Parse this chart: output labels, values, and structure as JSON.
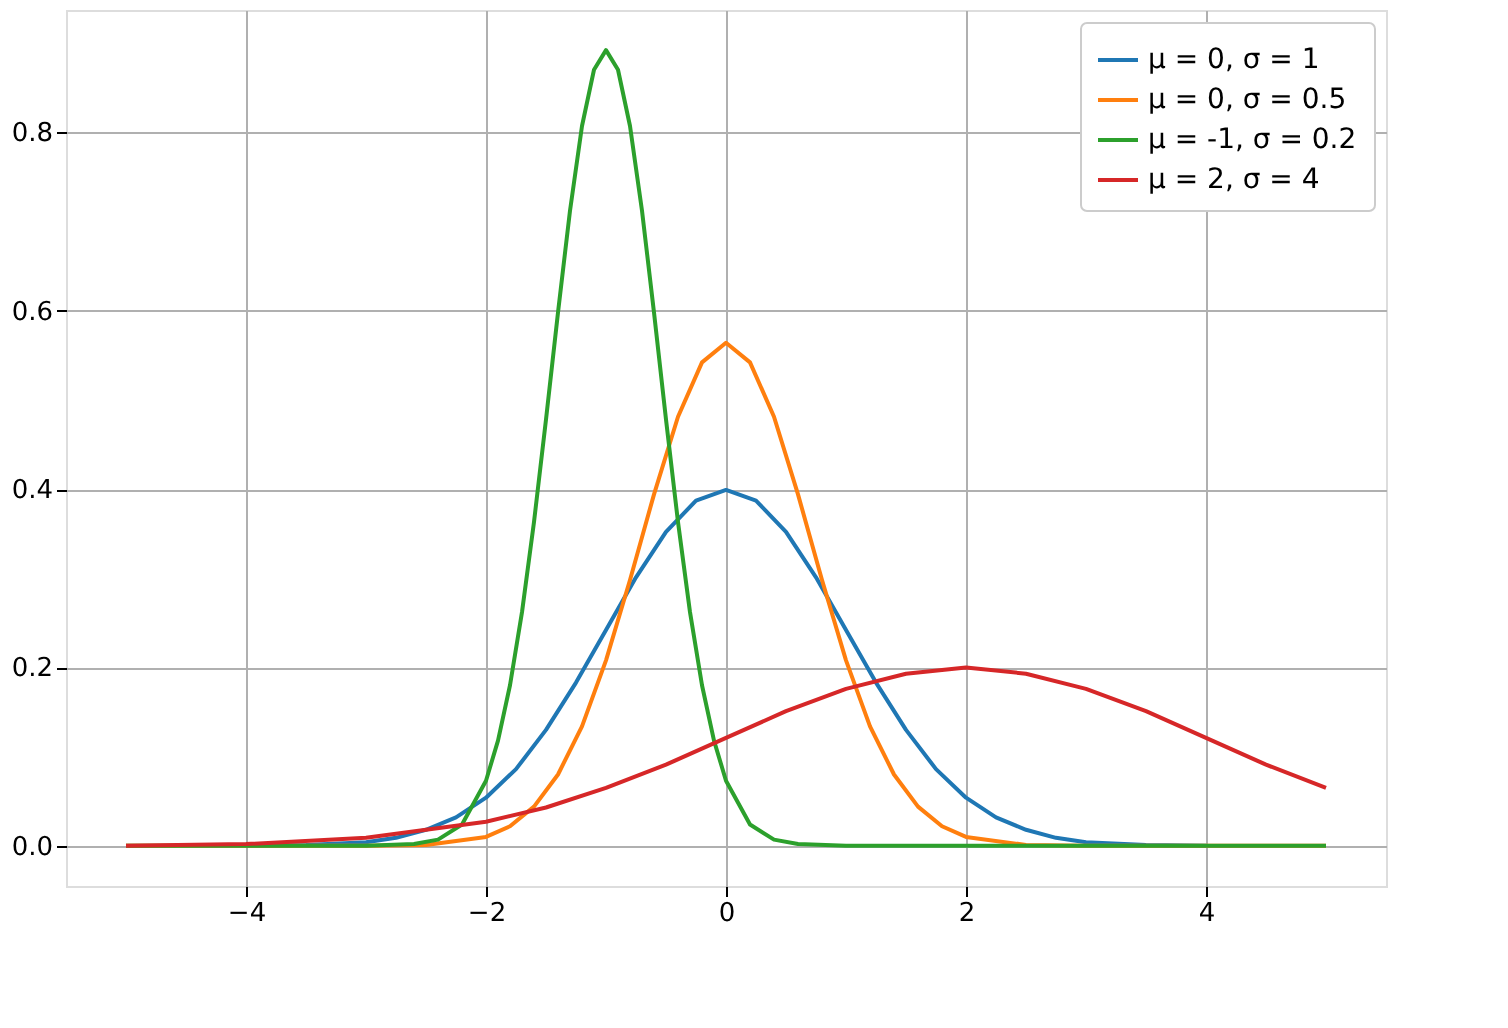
{
  "chart_data": {
    "type": "line",
    "xlim": [
      -5.5,
      5.5
    ],
    "ylim": [
      -0.045,
      0.937
    ],
    "xticks": [
      {
        "value": -4,
        "label": "−4"
      },
      {
        "value": -2,
        "label": "−2"
      },
      0,
      2,
      4
    ],
    "yticks": [
      {
        "value": 0,
        "label": "0.0"
      },
      {
        "value": 0.2,
        "label": "0.2"
      },
      {
        "value": 0.4,
        "label": "0.4"
      },
      {
        "value": 0.6,
        "label": "0.6"
      },
      {
        "value": 0.8,
        "label": "0.8"
      }
    ],
    "grid": true,
    "legend": "top right",
    "line_style": "solid",
    "marker": "none",
    "series": [
      {
        "name": "μ = 0, σ = 1",
        "color": "#1f77b4",
        "x": [
          -4,
          -3.5,
          -3,
          -2.75,
          -2.5,
          -2.25,
          -2,
          -1.75,
          -1.5,
          -1.25,
          -1,
          -0.75,
          -0.5,
          -0.25,
          0,
          0.25,
          0.5,
          0.75,
          1,
          1.25,
          1.5,
          1.75,
          2,
          2.25,
          2.5,
          2.75,
          3,
          3.5,
          4
        ],
        "values": [
          0.0,
          0.001,
          0.004,
          0.009,
          0.018,
          0.032,
          0.054,
          0.086,
          0.13,
          0.183,
          0.242,
          0.301,
          0.352,
          0.387,
          0.399,
          0.387,
          0.352,
          0.301,
          0.242,
          0.183,
          0.13,
          0.086,
          0.054,
          0.032,
          0.018,
          0.009,
          0.004,
          0.001,
          0.0
        ]
      },
      {
        "name": "μ = 0, σ = 0.5",
        "color": "#ff7f0e",
        "x": [
          -5,
          -3,
          -2.5,
          -2,
          -1.8,
          -1.6,
          -1.4,
          -1.2,
          -1,
          -0.8,
          -0.6,
          -0.4,
          -0.2,
          0,
          0.2,
          0.4,
          0.6,
          0.8,
          1,
          1.2,
          1.4,
          1.6,
          1.8,
          2,
          2.5,
          3,
          5
        ],
        "values": [
          0.0,
          0.0,
          0.001,
          0.01,
          0.022,
          0.044,
          0.08,
          0.134,
          0.208,
          0.298,
          0.394,
          0.481,
          0.542,
          0.564,
          0.542,
          0.481,
          0.394,
          0.298,
          0.208,
          0.134,
          0.08,
          0.044,
          0.022,
          0.01,
          0.001,
          0.0,
          0.0
        ]
      },
      {
        "name": "μ = -1, σ = 0.2",
        "color": "#2ca02c",
        "x": [
          -5,
          -3,
          -2.6,
          -2.4,
          -2.2,
          -2.0,
          -1.9,
          -1.8,
          -1.7,
          -1.6,
          -1.5,
          -1.4,
          -1.3,
          -1.2,
          -1.1,
          -1.0,
          -0.9,
          -0.8,
          -0.7,
          -0.6,
          -0.5,
          -0.4,
          -0.3,
          -0.2,
          -0.1,
          0,
          0.2,
          0.4,
          0.6,
          1,
          5
        ],
        "values": [
          0.0,
          0.0,
          0.002,
          0.007,
          0.024,
          0.073,
          0.118,
          0.18,
          0.262,
          0.363,
          0.478,
          0.598,
          0.712,
          0.807,
          0.87,
          0.892,
          0.87,
          0.807,
          0.712,
          0.598,
          0.478,
          0.363,
          0.262,
          0.18,
          0.118,
          0.073,
          0.024,
          0.007,
          0.002,
          0.0,
          0.0
        ]
      },
      {
        "name": "μ = 2, σ = 4",
        "color": "#d62728",
        "x": [
          -5,
          -4,
          -3,
          -2,
          -1.5,
          -1,
          -0.5,
          0,
          0.5,
          1,
          1.5,
          2,
          2.5,
          3,
          3.5,
          4,
          4.5,
          5
        ],
        "values": [
          0.0,
          0.002,
          0.009,
          0.027,
          0.043,
          0.065,
          0.091,
          0.121,
          0.151,
          0.176,
          0.193,
          0.2,
          0.193,
          0.176,
          0.151,
          0.121,
          0.091,
          0.065
        ]
      }
    ]
  }
}
